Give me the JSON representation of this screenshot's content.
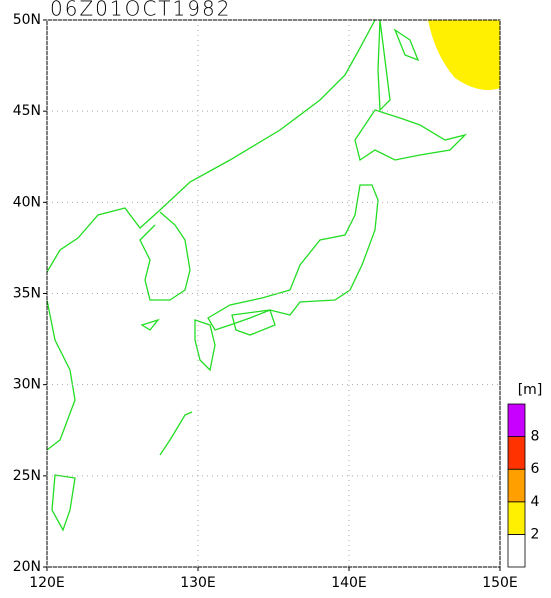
{
  "title": "06Z01OCT1982",
  "map": {
    "lat_ticks": [
      {
        "value": 20,
        "label": "20N"
      },
      {
        "value": 25,
        "label": "25N"
      },
      {
        "value": 30,
        "label": "30N"
      },
      {
        "value": 35,
        "label": "35N"
      },
      {
        "value": 40,
        "label": "40N"
      },
      {
        "value": 45,
        "label": "45N"
      },
      {
        "value": 50,
        "label": "50N"
      }
    ],
    "lon_ticks": [
      {
        "value": 120,
        "label": "120E"
      },
      {
        "value": 130,
        "label": "130E"
      },
      {
        "value": 140,
        "label": "140E"
      },
      {
        "value": 150,
        "label": "150E"
      }
    ],
    "lat_range": [
      20,
      50
    ],
    "lon_range": [
      120,
      150
    ],
    "grid": true
  },
  "colorbar": {
    "unit": "[m]",
    "levels": [
      2,
      4,
      6,
      8
    ],
    "colors": [
      "#ffffff",
      "#ffef00",
      "#ffa000",
      "#ff3200",
      "#c800ff"
    ]
  }
}
